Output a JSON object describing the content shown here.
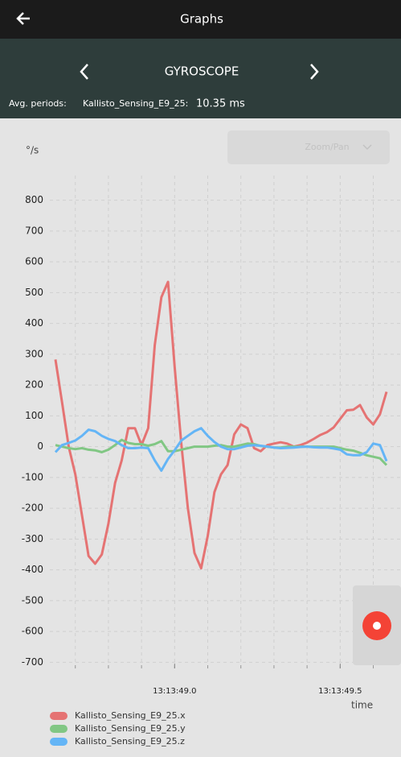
{
  "app_bar": {
    "title": "Graphs"
  },
  "sensor_bar": {
    "title": "GYROSCOPE",
    "avg_label": "Avg. periods:",
    "device": "Kallisto_Sensing_E9_25:",
    "period": "10.35 ms"
  },
  "zoom_pan": "Zoom/Pan",
  "chart_data": {
    "type": "line",
    "y_label": "°/s",
    "x_label": "time",
    "x": [
      "13:13:48.64",
      "13:13:48.66",
      "13:13:48.68",
      "13:13:48.70",
      "13:13:48.72",
      "13:13:48.74",
      "13:13:48.76",
      "13:13:48.78",
      "13:13:48.80",
      "13:13:48.82",
      "13:13:48.84",
      "13:13:48.86",
      "13:13:48.88",
      "13:13:48.90",
      "13:13:48.92",
      "13:13:48.94",
      "13:13:48.96",
      "13:13:48.98",
      "13:13:49.00",
      "13:13:49.02",
      "13:13:49.04",
      "13:13:49.06",
      "13:13:49.08",
      "13:13:49.10",
      "13:13:49.12",
      "13:13:49.14",
      "13:13:49.16",
      "13:13:49.18",
      "13:13:49.20",
      "13:13:49.22",
      "13:13:49.24",
      "13:13:49.26",
      "13:13:49.28",
      "13:13:49.30",
      "13:13:49.32",
      "13:13:49.34",
      "13:13:49.36",
      "13:13:49.38",
      "13:13:49.40",
      "13:13:49.42",
      "13:13:49.44",
      "13:13:49.46",
      "13:13:49.48",
      "13:13:49.50",
      "13:13:49.52",
      "13:13:49.54",
      "13:13:49.56",
      "13:13:49.58",
      "13:13:49.60",
      "13:13:49.62",
      "13:13:49.64"
    ],
    "series": [
      {
        "name": "Kallisto_Sensing_E9_25.x",
        "color": "#e57373",
        "values": [
          283,
          144,
          0,
          -90,
          -223,
          -355,
          -380,
          -350,
          -250,
          -118,
          -45,
          60,
          60,
          5,
          60,
          330,
          485,
          535,
          260,
          10,
          -200,
          -345,
          -395,
          -290,
          -148,
          -90,
          -60,
          40,
          72,
          60,
          -5,
          -15,
          5,
          10,
          14,
          10,
          0,
          5,
          13,
          25,
          38,
          47,
          62,
          90,
          118,
          120,
          135,
          95,
          72,
          105,
          178
        ]
      },
      {
        "name": "Kallisto_Sensing_E9_25.y",
        "color": "#81c784",
        "values": [
          5,
          0,
          -5,
          -8,
          -5,
          -10,
          -12,
          -18,
          -10,
          5,
          22,
          12,
          8,
          8,
          3,
          8,
          18,
          -15,
          -15,
          -10,
          -5,
          0,
          0,
          0,
          3,
          5,
          0,
          0,
          5,
          10,
          8,
          2,
          0,
          -3,
          -3,
          0,
          0,
          0,
          0,
          0,
          0,
          0,
          0,
          -5,
          -10,
          -13,
          -20,
          -28,
          -33,
          -38,
          -60
        ]
      },
      {
        "name": "Kallisto_Sensing_E9_25.z",
        "color": "#64b5f6",
        "values": [
          -18,
          5,
          12,
          20,
          35,
          55,
          50,
          35,
          25,
          18,
          5,
          -5,
          -5,
          -3,
          -5,
          -45,
          -78,
          -40,
          -12,
          20,
          35,
          50,
          60,
          35,
          15,
          0,
          -8,
          -8,
          -3,
          3,
          5,
          3,
          0,
          -3,
          -5,
          -4,
          -3,
          -1,
          0,
          -2,
          -3,
          -3,
          -6,
          -10,
          -25,
          -28,
          -28,
          -18,
          10,
          5,
          -47
        ]
      }
    ],
    "ylim": [
      -720,
      880
    ],
    "yticks": [
      800,
      700,
      600,
      500,
      400,
      300,
      200,
      100,
      0,
      -100,
      -200,
      -300,
      -400,
      -500,
      -600,
      -700
    ],
    "xlim": [
      "13:13:48.64",
      "13:13:49.64"
    ],
    "xticks": [
      "13:13:49.0",
      "13:13:49.5"
    ],
    "grid": true
  }
}
